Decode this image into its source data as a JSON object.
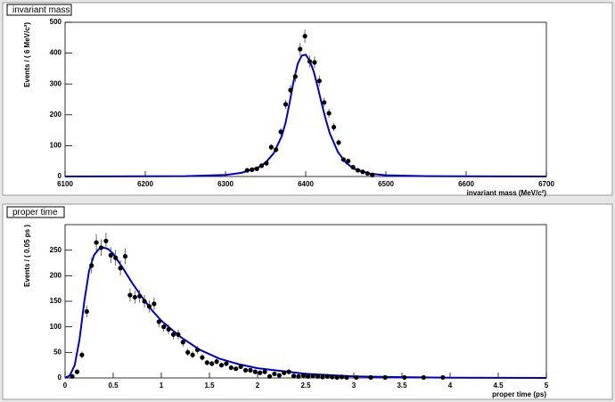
{
  "chart_data": [
    {
      "type": "errorbar",
      "title": "invariant mass",
      "xlabel": "invariant mass (MeV/c²)",
      "ylabel": "Events / ( 6 MeV/c²)",
      "xlim": [
        6100,
        6700
      ],
      "xticks": [
        6100,
        6200,
        6300,
        6400,
        6500,
        6600,
        6700
      ],
      "ylim": [
        0,
        500
      ],
      "yticks": [
        0,
        100,
        200,
        300,
        400,
        500
      ],
      "points": {
        "color": "#000000",
        "x": [
          6327,
          6333,
          6339,
          6345,
          6351,
          6357,
          6363,
          6369,
          6375,
          6381,
          6387,
          6393,
          6399,
          6405,
          6411,
          6417,
          6423,
          6429,
          6435,
          6441,
          6447,
          6453,
          6459,
          6465,
          6471,
          6477,
          6483
        ],
        "values": [
          20,
          22,
          25,
          35,
          43,
          95,
          87,
          145,
          234,
          280,
          324,
          413,
          455,
          373,
          370,
          310,
          240,
          205,
          160,
          110,
          55,
          50,
          30,
          20,
          15,
          10,
          5
        ],
        "errors": [
          4.5,
          4.7,
          5,
          5.9,
          6.6,
          9.7,
          9.3,
          12,
          15.3,
          16.7,
          18,
          20.3,
          21.3,
          19.3,
          19.2,
          17.6,
          15.5,
          14.3,
          12.6,
          10.5,
          7.4,
          7.1,
          5.5,
          4.5,
          3.9,
          3.2,
          2.2
        ]
      },
      "fit": {
        "color": "#0000cc",
        "x": [
          6100,
          6250,
          6300,
          6320,
          6340,
          6350,
          6360,
          6370,
          6375,
          6380,
          6385,
          6390,
          6395,
          6400,
          6405,
          6410,
          6415,
          6420,
          6425,
          6430,
          6440,
          6450,
          6460,
          6480,
          6500,
          6550,
          6700
        ],
        "values": [
          0,
          1,
          5,
          12,
          28,
          45,
          75,
          130,
          175,
          240,
          310,
          365,
          392,
          395,
          375,
          340,
          290,
          235,
          185,
          140,
          80,
          45,
          25,
          9,
          4,
          1,
          0
        ]
      }
    },
    {
      "type": "errorbar",
      "title": "proper time",
      "xlabel": "proper time (ps)",
      "ylabel": "Events / ( 0.05 ps )",
      "xlim": [
        0,
        5
      ],
      "xticks": [
        0,
        0.5,
        1,
        1.5,
        2,
        2.5,
        3,
        3.5,
        4,
        4.5,
        5
      ],
      "ylim": [
        0,
        300
      ],
      "yticks": [
        0,
        50,
        100,
        150,
        200,
        250
      ],
      "points": {
        "color": "#000000",
        "x": [
          0.075,
          0.125,
          0.175,
          0.225,
          0.275,
          0.325,
          0.375,
          0.425,
          0.475,
          0.525,
          0.575,
          0.625,
          0.675,
          0.725,
          0.775,
          0.825,
          0.875,
          0.925,
          0.975,
          1.025,
          1.075,
          1.125,
          1.175,
          1.225,
          1.275,
          1.325,
          1.375,
          1.425,
          1.475,
          1.525,
          1.575,
          1.625,
          1.675,
          1.725,
          1.775,
          1.825,
          1.875,
          1.925,
          1.975,
          2.025,
          2.075,
          2.125,
          2.175,
          2.225,
          2.275,
          2.325,
          2.375,
          2.425,
          2.475,
          2.525,
          2.575,
          2.625,
          2.675,
          2.725,
          2.775,
          2.825,
          2.875,
          2.925,
          3.025,
          3.175,
          3.325,
          3.525,
          3.725,
          3.925
        ],
        "values": [
          3,
          12,
          45,
          130,
          220,
          265,
          255,
          268,
          240,
          235,
          215,
          238,
          162,
          158,
          160,
          150,
          140,
          145,
          110,
          100,
          95,
          85,
          85,
          70,
          50,
          45,
          55,
          40,
          30,
          28,
          32,
          25,
          28,
          20,
          18,
          22,
          15,
          15,
          12,
          10,
          12,
          3,
          8,
          5,
          10,
          12,
          4,
          3,
          5,
          3,
          4,
          3,
          2,
          3,
          2,
          1,
          2,
          1,
          1,
          1,
          1,
          1,
          1,
          1
        ],
        "errors": [
          1.7,
          3.5,
          6.7,
          11.4,
          14.8,
          16.3,
          16,
          16.4,
          15.5,
          15.3,
          14.7,
          15.4,
          12.7,
          12.6,
          12.6,
          12.2,
          11.8,
          12,
          10.5,
          10,
          9.7,
          9.2,
          9.2,
          8.4,
          7.1,
          6.7,
          7.4,
          6.3,
          5.5,
          5.3,
          5.7,
          5,
          5.3,
          4.5,
          4.2,
          4.7,
          3.9,
          3.9,
          3.5,
          3.2,
          3.5,
          1.7,
          2.8,
          2.2,
          3.2,
          3.5,
          2,
          1.7,
          2.2,
          1.7,
          2,
          1.7,
          1.4,
          1.7,
          1.4,
          1,
          1.4,
          1,
          1,
          1,
          1,
          1,
          1,
          1
        ]
      },
      "fit": {
        "color": "#0000cc",
        "x": [
          0,
          0.05,
          0.1,
          0.15,
          0.2,
          0.25,
          0.3,
          0.35,
          0.4,
          0.45,
          0.5,
          0.6,
          0.7,
          0.8,
          0.9,
          1,
          1.2,
          1.4,
          1.6,
          1.8,
          2,
          2.5,
          3,
          3.5,
          4,
          5
        ],
        "values": [
          0,
          5,
          25,
          75,
          150,
          210,
          240,
          252,
          255,
          252,
          243,
          215,
          185,
          158,
          133,
          112,
          80,
          55,
          38,
          27,
          19,
          8,
          3,
          1.5,
          0.5,
          0
        ]
      }
    }
  ]
}
